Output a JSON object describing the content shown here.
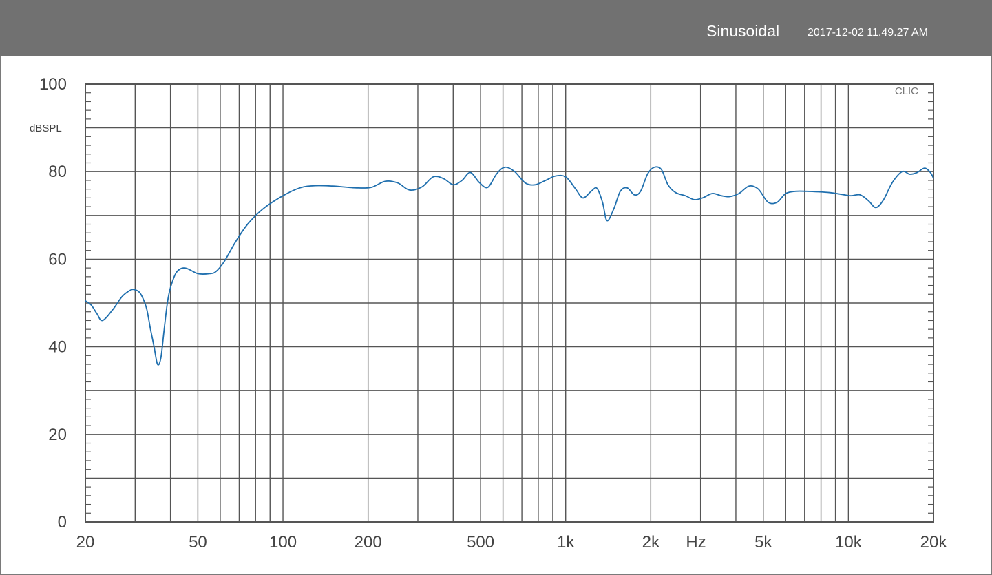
{
  "header": {
    "mode": "Sinusoidal",
    "timestamp": "2017-12-02 11.49.27 AM"
  },
  "chart_data": {
    "type": "line",
    "title": "",
    "xlabel": "Hz",
    "ylabel": "dBSPL",
    "watermark": "CLIC",
    "x_scale": "log",
    "xlim": [
      20,
      20000
    ],
    "ylim": [
      0,
      100
    ],
    "grid": true,
    "line_color": "#1f6fae",
    "y_ticks": [
      {
        "value": 0,
        "label": "0"
      },
      {
        "value": 20,
        "label": "20"
      },
      {
        "value": 40,
        "label": "40"
      },
      {
        "value": 60,
        "label": "60"
      },
      {
        "value": 80,
        "label": "80"
      },
      {
        "value": 100,
        "label": "100"
      }
    ],
    "x_ticks": [
      {
        "value": 20,
        "label": "20"
      },
      {
        "value": 50,
        "label": "50"
      },
      {
        "value": 100,
        "label": "100"
      },
      {
        "value": 200,
        "label": "200"
      },
      {
        "value": 500,
        "label": "500"
      },
      {
        "value": 1000,
        "label": "1k"
      },
      {
        "value": 2000,
        "label": "2k"
      },
      {
        "value": 5000,
        "label": "5k"
      },
      {
        "value": 10000,
        "label": "10k"
      },
      {
        "value": 20000,
        "label": "20k"
      }
    ],
    "series": [
      {
        "x": [
          20,
          21,
          22,
          23,
          25,
          27,
          29,
          30,
          31,
          32,
          33,
          34,
          35,
          36,
          37,
          38,
          39,
          40,
          42,
          45,
          50,
          55,
          58,
          62,
          68,
          75,
          85,
          100,
          115,
          130,
          150,
          180,
          205,
          230,
          255,
          280,
          310,
          340,
          370,
          400,
          430,
          460,
          495,
          530,
          570,
          610,
          660,
          720,
          780,
          850,
          920,
          1000,
          1080,
          1150,
          1230,
          1290,
          1350,
          1400,
          1480,
          1560,
          1650,
          1750,
          1840,
          1950,
          2060,
          2180,
          2300,
          2450,
          2650,
          2850,
          3050,
          3300,
          3550,
          3800,
          4100,
          4450,
          4800,
          5200,
          5600,
          6000,
          6500,
          7100,
          7800,
          8600,
          9500,
          10200,
          11000,
          11800,
          12500,
          13300,
          14300,
          15500,
          16500,
          17500,
          18600,
          19500,
          20000
        ],
        "y": [
          50.5,
          49.5,
          47.5,
          46,
          48.5,
          51.5,
          53,
          53,
          52.5,
          51,
          48.5,
          44,
          40,
          36,
          37.5,
          44,
          50,
          53.5,
          57,
          58,
          56.7,
          56.7,
          57.2,
          59.5,
          64,
          68,
          71.5,
          74.5,
          76.3,
          76.8,
          76.7,
          76.3,
          76.4,
          77.8,
          77.4,
          75.8,
          76.5,
          78.8,
          78.4,
          77,
          78,
          79.8,
          77.5,
          76.4,
          79.5,
          81,
          80,
          77.4,
          77,
          78,
          79,
          78.8,
          76.2,
          74,
          75.5,
          76.2,
          73,
          68.8,
          71.5,
          75.5,
          76.3,
          74.7,
          75.5,
          79.5,
          81,
          80.5,
          77,
          75.2,
          74.5,
          73.6,
          74,
          75,
          74.5,
          74.3,
          75,
          76.7,
          76,
          73,
          73,
          75,
          75.5,
          75.5,
          75.4,
          75.2,
          74.8,
          74.5,
          74.7,
          73.3,
          71.8,
          73.5,
          77.5,
          80,
          79.4,
          79.8,
          80.8,
          79.8,
          78.5
        ]
      }
    ]
  }
}
